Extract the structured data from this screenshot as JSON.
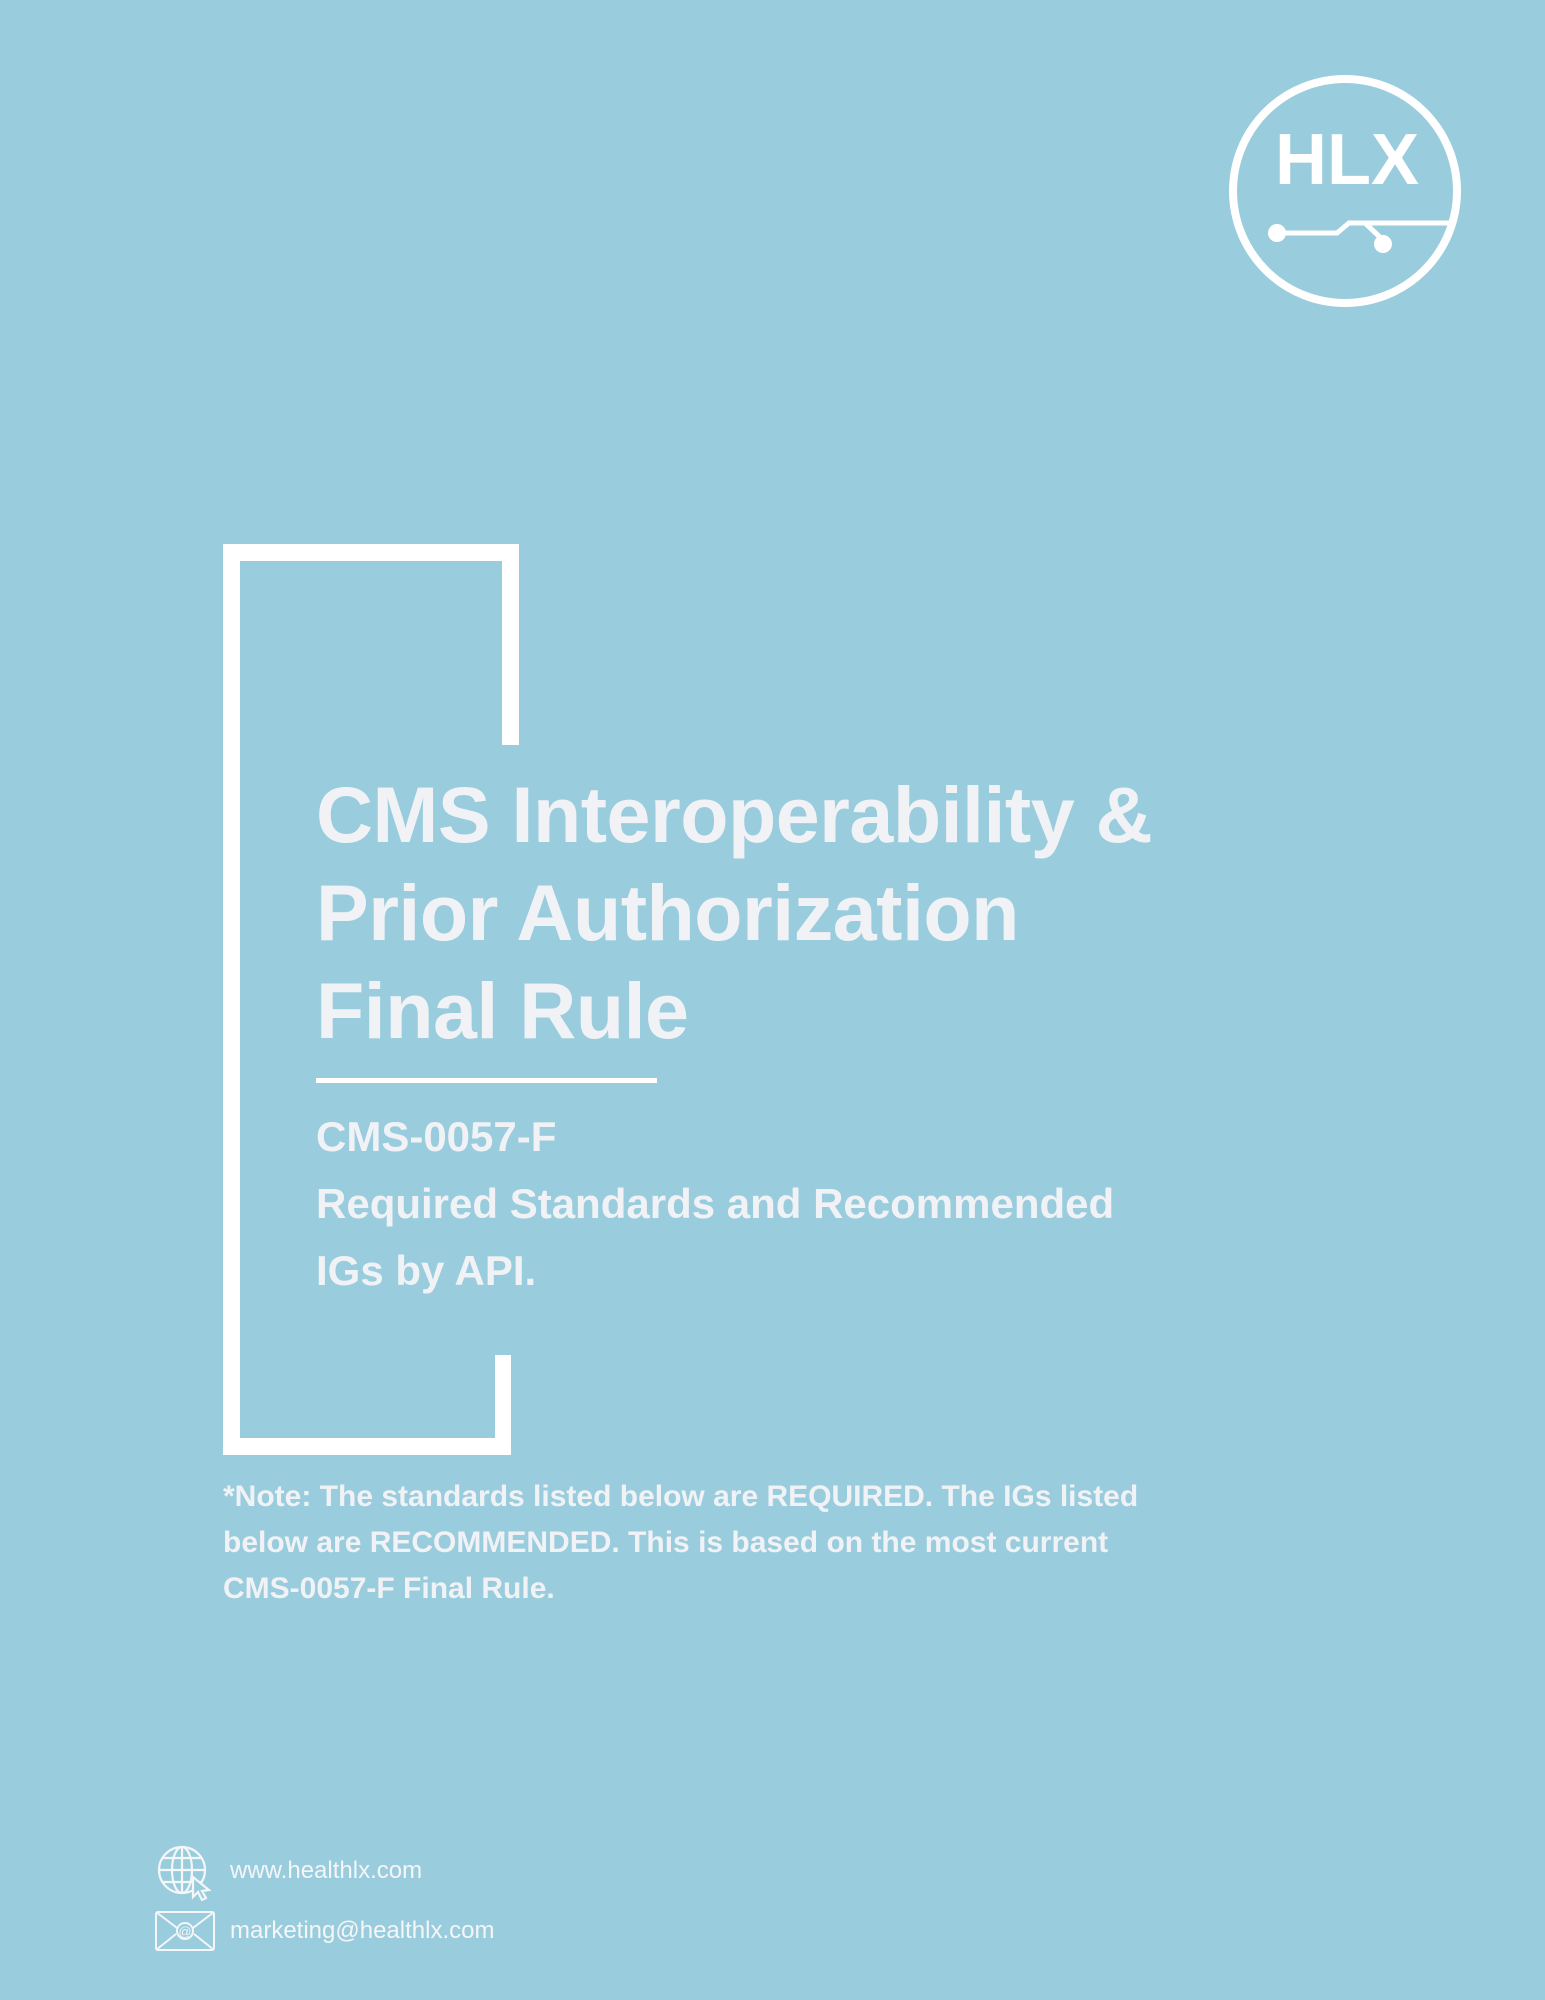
{
  "logo": {
    "text": "HLX"
  },
  "title": {
    "line1": "CMS Interoperability &",
    "line2": "Prior Authorization",
    "line3": "Final Rule"
  },
  "subtitle": {
    "line1": "CMS-0057-F",
    "line2": "Required Standards and Recommended",
    "line3": "IGs by API."
  },
  "note": {
    "line1": "*Note: The standards listed below are REQUIRED. The IGs listed",
    "line2": "below are RECOMMENDED. This is based on the most current",
    "line3": "CMS-0057-F Final Rule."
  },
  "contact": {
    "website": "www.healthlx.com",
    "email": "marketing@healthlx.com",
    "website_icon": "globe-cursor-icon",
    "email_icon": "envelope-at-icon"
  },
  "colors": {
    "background": "#99cddd",
    "foreground": "#ffffff"
  }
}
